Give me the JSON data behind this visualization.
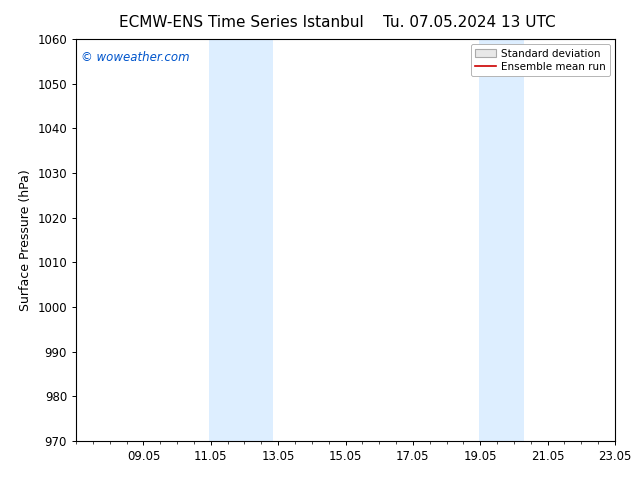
{
  "title_left": "ECMW-ENS Time Series Istanbul",
  "title_right": "Tu. 07.05.2024 13 UTC",
  "ylabel": "Surface Pressure (hPa)",
  "ylim": [
    970,
    1060
  ],
  "yticks": [
    970,
    980,
    990,
    1000,
    1010,
    1020,
    1030,
    1040,
    1050,
    1060
  ],
  "xtick_labels": [
    "09.05",
    "11.05",
    "13.05",
    "15.05",
    "17.05",
    "19.05",
    "21.05",
    "23.05"
  ],
  "xtick_positions": [
    2,
    4,
    6,
    8,
    10,
    12,
    14,
    16
  ],
  "xlim": [
    0,
    16
  ],
  "shaded_bands": [
    {
      "x_start": 3.95,
      "x_end": 5.85
    },
    {
      "x_start": 11.95,
      "x_end": 13.3
    }
  ],
  "shaded_color": "#ddeeff",
  "background_color": "#ffffff",
  "watermark_text": "© woweather.com",
  "watermark_color": "#0055cc",
  "legend_std_label": "Standard deviation",
  "legend_mean_label": "Ensemble mean run",
  "legend_std_color": "#cccccc",
  "legend_mean_color": "#cc0000",
  "title_fontsize": 11,
  "axis_label_fontsize": 9,
  "tick_fontsize": 8.5,
  "legend_fontsize": 7.5
}
